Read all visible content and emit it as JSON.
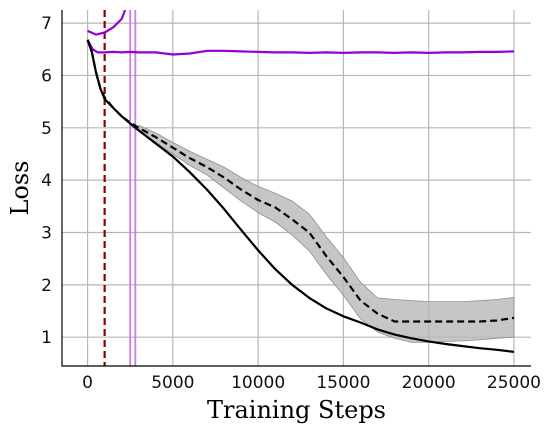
{
  "chart_data": {
    "type": "line",
    "title": "",
    "xlabel": "Training Steps",
    "ylabel": "Loss",
    "xlim": [
      -1500,
      26000
    ],
    "ylim": [
      0.45,
      7.25
    ],
    "xticks": [
      0,
      5000,
      10000,
      15000,
      20000,
      25000
    ],
    "xtick_labels": [
      "0",
      "5000",
      "10000",
      "15000",
      "20000",
      "25000"
    ],
    "yticks": [
      1,
      2,
      3,
      4,
      5,
      6,
      7
    ],
    "ytick_labels": [
      "1",
      "2",
      "3",
      "4",
      "5",
      "6",
      "7"
    ],
    "grid": true,
    "legend": null,
    "vlines": [
      {
        "x": 1000,
        "color": "#8b0000",
        "style": "dashed"
      },
      {
        "x": 2500,
        "color": "#c77dea",
        "style": "solid"
      },
      {
        "x": 2800,
        "color": "#c77dea",
        "style": "solid"
      }
    ],
    "series": [
      {
        "color": "#9400d3",
        "style": "solid",
        "x": [
          0,
          300,
          600,
          1000,
          1500,
          2000,
          2500,
          3000,
          4000,
          5000,
          6000,
          7000,
          8000,
          9000,
          10000,
          11000,
          12000,
          13000,
          14000,
          15000,
          16000,
          17000,
          18000,
          19000,
          20000,
          21000,
          22000,
          23000,
          24000,
          25000
        ],
        "y": [
          6.68,
          6.5,
          6.44,
          6.44,
          6.45,
          6.44,
          6.45,
          6.44,
          6.44,
          6.4,
          6.42,
          6.47,
          6.47,
          6.46,
          6.45,
          6.44,
          6.44,
          6.43,
          6.44,
          6.43,
          6.44,
          6.44,
          6.43,
          6.44,
          6.43,
          6.44,
          6.44,
          6.45,
          6.45,
          6.46
        ]
      },
      {
        "color": "#9400d3",
        "style": "solid",
        "x": [
          0,
          500,
          1000,
          1500,
          2000,
          2200
        ],
        "y": [
          6.85,
          6.78,
          6.82,
          6.92,
          7.08,
          7.25
        ]
      },
      {
        "color": "#000000",
        "style": "solid",
        "x": [
          0,
          250,
          500,
          750,
          1000,
          1500,
          2000,
          2500,
          3000,
          4000,
          5000,
          6000,
          7000,
          8000,
          9000,
          10000,
          11000,
          12000,
          13000,
          14000,
          15000,
          16000,
          17000,
          18000,
          19000,
          20000,
          21000,
          22000,
          23000,
          24000,
          25000
        ],
        "y": [
          6.68,
          6.45,
          6.05,
          5.75,
          5.55,
          5.38,
          5.22,
          5.08,
          4.95,
          4.7,
          4.45,
          4.15,
          3.82,
          3.45,
          3.05,
          2.66,
          2.3,
          2.0,
          1.75,
          1.55,
          1.4,
          1.28,
          1.15,
          1.05,
          0.98,
          0.92,
          0.87,
          0.83,
          0.79,
          0.76,
          0.72
        ]
      },
      {
        "color": "#000000",
        "style": "dashed",
        "x": [
          0,
          250,
          500,
          750,
          1000,
          1500,
          2000,
          2500,
          3000,
          4000,
          5000,
          6000,
          7000,
          8000,
          9000,
          10000,
          11000,
          12000,
          13000,
          14000,
          15000,
          16000,
          17000,
          18000,
          19000,
          20000,
          21000,
          22000,
          23000,
          24000,
          25000
        ],
        "y": [
          6.68,
          6.45,
          6.05,
          5.75,
          5.58,
          5.38,
          5.22,
          5.1,
          5.0,
          4.82,
          4.62,
          4.42,
          4.25,
          4.05,
          3.82,
          3.62,
          3.48,
          3.25,
          3.0,
          2.55,
          2.15,
          1.7,
          1.45,
          1.3,
          1.3,
          1.3,
          1.3,
          1.3,
          1.3,
          1.32,
          1.37
        ]
      }
    ],
    "bands": [
      {
        "color": "#b8b8b8",
        "x": [
          3000,
          4000,
          5000,
          6000,
          7000,
          8000,
          9000,
          10000,
          11000,
          12000,
          13000,
          14000,
          15000,
          16000,
          17000,
          18000,
          19000,
          20000,
          21000,
          22000,
          23000,
          24000,
          25000
        ],
        "upper": [
          5.05,
          4.9,
          4.72,
          4.55,
          4.4,
          4.25,
          4.05,
          3.88,
          3.75,
          3.6,
          3.35,
          2.92,
          2.52,
          2.05,
          1.75,
          1.72,
          1.7,
          1.68,
          1.68,
          1.68,
          1.7,
          1.72,
          1.76
        ],
        "lower": [
          4.95,
          4.72,
          4.5,
          4.28,
          4.1,
          3.85,
          3.6,
          3.38,
          3.2,
          2.95,
          2.65,
          2.2,
          1.8,
          1.35,
          1.1,
          0.98,
          0.9,
          0.9,
          0.92,
          0.93,
          0.95,
          0.98,
          1.0
        ]
      }
    ]
  }
}
